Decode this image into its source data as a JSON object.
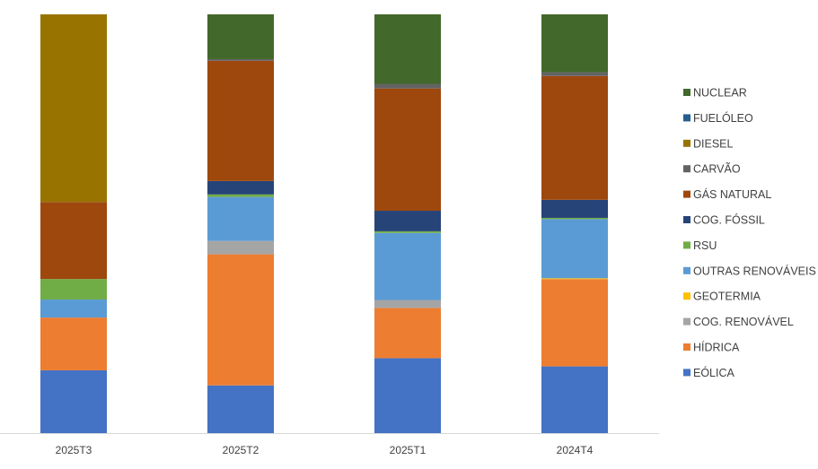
{
  "chart_data": {
    "type": "bar",
    "stacked": true,
    "percent_stacked": true,
    "title": "",
    "xlabel": "",
    "ylabel": "",
    "ylim": [
      0,
      100
    ],
    "grid": false,
    "legend_position": "right",
    "categories": [
      "2025T3",
      "2025T2",
      "2025T1",
      "2024T4"
    ],
    "series": [
      {
        "name": "EÓLICA",
        "color": "#4472C4",
        "values": [
          15.0,
          11.4,
          17.9,
          15.9
        ]
      },
      {
        "name": "HÍDRICA",
        "color": "#ED7D31",
        "values": [
          12.6,
          31.3,
          12.0,
          20.8
        ]
      },
      {
        "name": "COG. RENOVÁVEL",
        "color": "#A5A5A5",
        "values": [
          0.0,
          3.2,
          1.9,
          0.0
        ]
      },
      {
        "name": "GEOTERMIA",
        "color": "#FFC000",
        "values": [
          0.0,
          0.0,
          0.0,
          0.2
        ]
      },
      {
        "name": "OUTRAS RENOVÁVEIS",
        "color": "#5B9BD5",
        "values": [
          4.3,
          10.5,
          16.0,
          14.1
        ]
      },
      {
        "name": "RSU",
        "color": "#70AD47",
        "values": [
          4.9,
          0.6,
          0.4,
          0.3
        ]
      },
      {
        "name": "COG. FÓSSIL",
        "color": "#264478",
        "values": [
          0.0,
          3.2,
          4.9,
          4.3
        ]
      },
      {
        "name": "GÁS NATURAL",
        "color": "#9E480E",
        "values": [
          18.4,
          28.7,
          29.2,
          29.5
        ]
      },
      {
        "name": "CARVÃO",
        "color": "#636363",
        "values": [
          0.0,
          0.4,
          1.1,
          0.9
        ]
      },
      {
        "name": "DIESEL",
        "color": "#997300",
        "values": [
          44.8,
          0.0,
          0.0,
          0.0
        ]
      },
      {
        "name": "FUELÓLEO",
        "color": "#255E91",
        "values": [
          0.0,
          0.0,
          0.0,
          0.0
        ]
      },
      {
        "name": "NUCLEAR",
        "color": "#43682B",
        "values": [
          0.0,
          10.7,
          16.6,
          13.8
        ]
      }
    ]
  }
}
